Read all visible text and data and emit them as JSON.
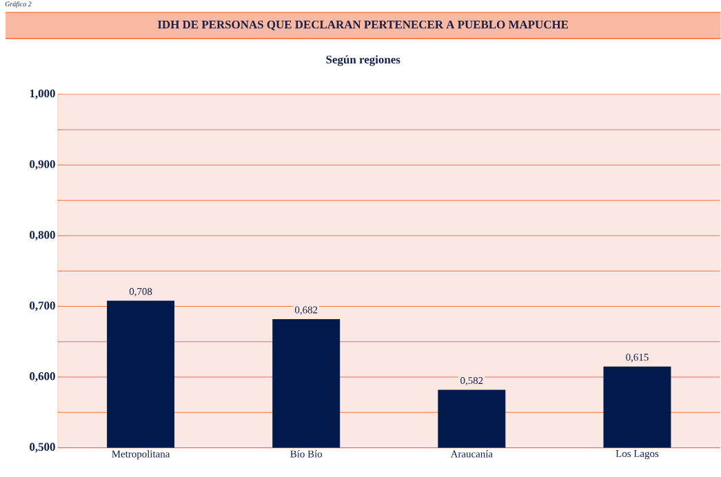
{
  "chart_data": {
    "type": "bar",
    "title": "IDH DE PERSONAS QUE DECLARAN PERTENECER A PUEBLO MAPUCHE",
    "subtitle": "Según regiones",
    "annotations": [
      "Gráfico 2"
    ],
    "categories": [
      "Metropolitana",
      "Bío Bío",
      "Araucanía",
      "Los Lagos"
    ],
    "values": [
      0.708,
      0.682,
      0.582,
      0.615
    ],
    "value_labels": [
      "0,708",
      "0,682",
      "0,582",
      "0,615"
    ],
    "color": "#001a4d",
    "ylim": [
      0.5,
      1.0
    ],
    "yticks": [
      {
        "value": 0.5,
        "label": "0,500"
      },
      {
        "value": 0.55,
        "label": null
      },
      {
        "value": 0.6,
        "label": "0,600"
      },
      {
        "value": 0.65,
        "label": null
      },
      {
        "value": 0.7,
        "label": "0,700"
      },
      {
        "value": 0.75,
        "label": null
      },
      {
        "value": 0.8,
        "label": "0,800"
      },
      {
        "value": 0.85,
        "label": null
      },
      {
        "value": 0.9,
        "label": "0,900"
      },
      {
        "value": 0.95,
        "label": null
      },
      {
        "value": 1.0,
        "label": "1,000"
      }
    ],
    "grid": "y"
  }
}
